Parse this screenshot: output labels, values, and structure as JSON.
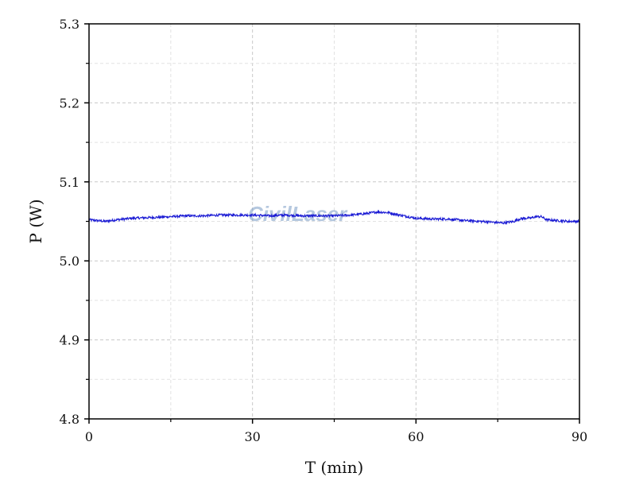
{
  "chart_data": {
    "type": "line",
    "xlabel": "T (min)",
    "ylabel": "P (W)",
    "xlim": [
      0,
      90
    ],
    "ylim": [
      4.8,
      5.3
    ],
    "x_ticks": [
      0,
      30,
      60,
      90
    ],
    "x_tick_labels": [
      "0",
      "30",
      "60",
      "90"
    ],
    "y_ticks": [
      4.8,
      4.9,
      5.0,
      5.1,
      5.2,
      5.3
    ],
    "y_tick_labels": [
      "4.8",
      "4.9",
      "5.0",
      "5.1",
      "5.2",
      "5.3"
    ],
    "grid": true,
    "series": [
      {
        "color": "#1a1ad4",
        "x": [
          0,
          3,
          5,
          8,
          12,
          15,
          18,
          21,
          24,
          27,
          30,
          33,
          36,
          39,
          42,
          45,
          48,
          51,
          53,
          55,
          57,
          60,
          63,
          66,
          69,
          72,
          74,
          76,
          78,
          79,
          80,
          81,
          82,
          83,
          84,
          86,
          88,
          90
        ],
        "y": [
          5.052,
          5.05,
          5.052,
          5.054,
          5.055,
          5.056,
          5.057,
          5.057,
          5.058,
          5.058,
          5.058,
          5.057,
          5.058,
          5.057,
          5.057,
          5.057,
          5.058,
          5.06,
          5.062,
          5.061,
          5.058,
          5.054,
          5.053,
          5.053,
          5.051,
          5.05,
          5.049,
          5.048,
          5.05,
          5.053,
          5.054,
          5.054,
          5.056,
          5.056,
          5.052,
          5.051,
          5.05,
          5.05
        ]
      }
    ],
    "watermark": "CivilLaser"
  }
}
